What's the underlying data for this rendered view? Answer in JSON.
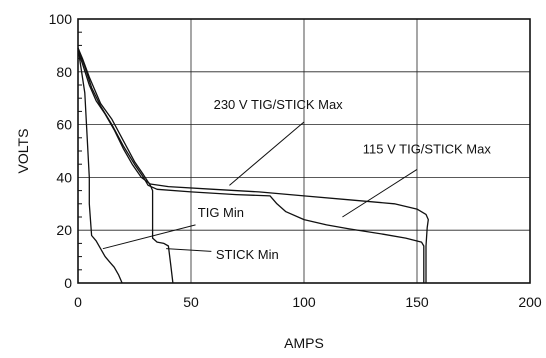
{
  "chart_data": {
    "type": "line",
    "xlabel": "AMPS",
    "ylabel": "VOLTS",
    "xlim": [
      0,
      200
    ],
    "ylim": [
      0,
      100
    ],
    "x_ticks": [
      0,
      50,
      100,
      150,
      200
    ],
    "y_ticks": [
      0,
      20,
      40,
      60,
      80,
      100
    ],
    "grid": true,
    "series": [
      {
        "name": "230 V TIG/STICK Max",
        "points": [
          [
            0,
            88
          ],
          [
            2,
            83
          ],
          [
            5,
            75
          ],
          [
            8,
            69
          ],
          [
            12,
            64
          ],
          [
            16,
            58
          ],
          [
            20,
            51
          ],
          [
            24,
            45
          ],
          [
            28,
            40
          ],
          [
            32,
            37.5
          ],
          [
            40,
            36.5
          ],
          [
            60,
            35.5
          ],
          [
            80,
            34.5
          ],
          [
            100,
            33
          ],
          [
            120,
            31.5
          ],
          [
            140,
            30
          ],
          [
            150,
            28
          ],
          [
            154,
            26
          ],
          [
            155,
            24
          ],
          [
            154.5,
            21
          ],
          [
            154,
            14
          ],
          [
            154,
            0
          ]
        ]
      },
      {
        "name": "115 V TIG/STICK Max",
        "points": [
          [
            0,
            89
          ],
          [
            3,
            82
          ],
          [
            6,
            74
          ],
          [
            10,
            67
          ],
          [
            15,
            60
          ],
          [
            20,
            52
          ],
          [
            25,
            45
          ],
          [
            29,
            40
          ],
          [
            31,
            37
          ],
          [
            35,
            35.5
          ],
          [
            50,
            34.5
          ],
          [
            70,
            33.5
          ],
          [
            85,
            33
          ],
          [
            88,
            30
          ],
          [
            92,
            27
          ],
          [
            100,
            24
          ],
          [
            110,
            22
          ],
          [
            120,
            20.5
          ],
          [
            135,
            18.5
          ],
          [
            145,
            17
          ],
          [
            152,
            15.5
          ],
          [
            153,
            14
          ],
          [
            153,
            0
          ]
        ]
      },
      {
        "name": "TIG Min",
        "points": [
          [
            0,
            89
          ],
          [
            3,
            72
          ],
          [
            5,
            40
          ],
          [
            5,
            30
          ],
          [
            6,
            18
          ],
          [
            8,
            16
          ],
          [
            10,
            13
          ],
          [
            12,
            10
          ],
          [
            14,
            8
          ],
          [
            16,
            6
          ],
          [
            18,
            3
          ],
          [
            19.5,
            0
          ]
        ]
      },
      {
        "name": "STICK Min",
        "points": [
          [
            0,
            89
          ],
          [
            2,
            85
          ],
          [
            5,
            78
          ],
          [
            10,
            68
          ],
          [
            15,
            62
          ],
          [
            20,
            54
          ],
          [
            25,
            46
          ],
          [
            29,
            41
          ],
          [
            32,
            37
          ],
          [
            33,
            35
          ],
          [
            33,
            17
          ],
          [
            35,
            15.5
          ],
          [
            38,
            15
          ],
          [
            40,
            14
          ],
          [
            41,
            7
          ],
          [
            42,
            0
          ]
        ]
      }
    ],
    "annotations": [
      {
        "text": "230 V TIG/STICK Max",
        "series": "230 V TIG/STICK Max"
      },
      {
        "text": "115 V TIG/STICK Max",
        "series": "115 V TIG/STICK Max"
      },
      {
        "text": "TIG Min",
        "series": "TIG Min"
      },
      {
        "text": "STICK Min",
        "series": "STICK Min"
      }
    ]
  }
}
